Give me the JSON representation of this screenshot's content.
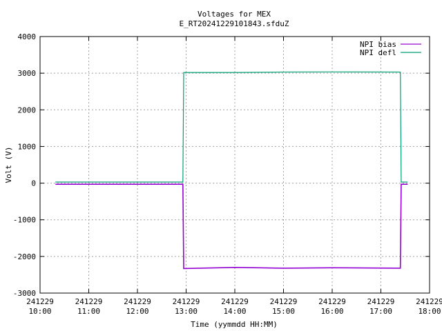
{
  "chart_data": {
    "type": "line",
    "title": "Voltages for MEX",
    "subtitle": "E_RT20241229101843.sfduZ",
    "xlabel": "Time (yymmdd HH:MM)",
    "ylabel": "Volt (V)",
    "xlim": [
      "241229 10:00",
      "241229 18:00"
    ],
    "ylim": [
      -3000,
      4000
    ],
    "grid": true,
    "legend_position": "top-right",
    "x_ticks": [
      {
        "date": "241229",
        "time": "10:00"
      },
      {
        "date": "241229",
        "time": "11:00"
      },
      {
        "date": "241229",
        "time": "12:00"
      },
      {
        "date": "241229",
        "time": "13:00"
      },
      {
        "date": "241229",
        "time": "14:00"
      },
      {
        "date": "241229",
        "time": "15:00"
      },
      {
        "date": "241229",
        "time": "16:00"
      },
      {
        "date": "241229",
        "time": "17:00"
      },
      {
        "date": "241229",
        "time": "18:00"
      }
    ],
    "y_ticks": [
      "-3000",
      "-2000",
      "-1000",
      "0",
      "1000",
      "2000",
      "3000",
      "4000"
    ],
    "series": [
      {
        "name": "NPI bias",
        "color": "#9400d3",
        "points": [
          [
            "241229 10:19",
            -30
          ],
          [
            "241229 12:56",
            -30
          ],
          [
            "241229 12:57",
            -2330
          ],
          [
            "241229 14:00",
            -2300
          ],
          [
            "241229 15:00",
            -2320
          ],
          [
            "241229 16:00",
            -2310
          ],
          [
            "241229 17:24",
            -2320
          ],
          [
            "241229 17:25",
            -30
          ],
          [
            "241229 17:33",
            -30
          ]
        ]
      },
      {
        "name": "NPI defl",
        "color": "#009e73",
        "points": [
          [
            "241229 10:19",
            30
          ],
          [
            "241229 12:56",
            30
          ],
          [
            "241229 12:57",
            3020
          ],
          [
            "241229 14:00",
            3020
          ],
          [
            "241229 15:00",
            3030
          ],
          [
            "241229 16:00",
            3035
          ],
          [
            "241229 17:24",
            3030
          ],
          [
            "241229 17:25",
            30
          ],
          [
            "241229 17:33",
            30
          ]
        ]
      }
    ]
  }
}
